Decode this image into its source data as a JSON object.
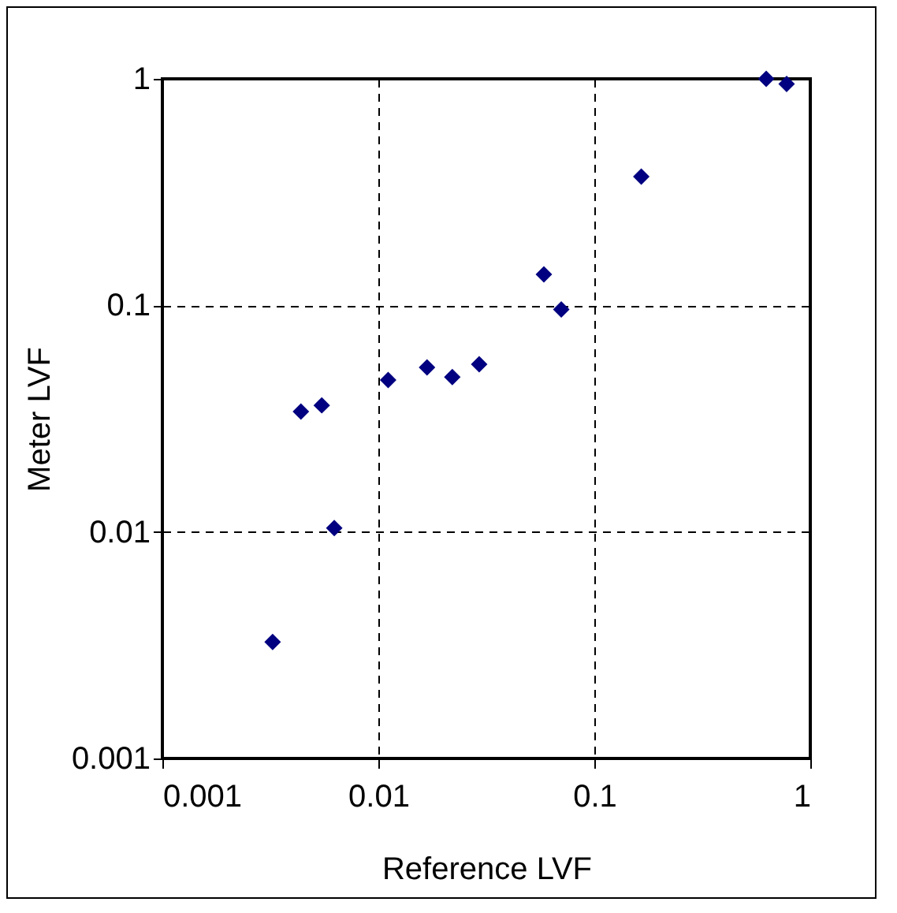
{
  "chart_data": {
    "type": "scatter",
    "xlabel": "Reference LVF",
    "ylabel": "Meter LVF",
    "x": [
      0.00324,
      0.00438,
      0.00547,
      0.00625,
      0.0111,
      0.0168,
      0.022,
      0.0293,
      0.0584,
      0.0703,
      0.165,
      0.625,
      0.777
    ],
    "series": [
      {
        "color": "#000080",
        "values": [
          0.00327,
          0.034,
          0.0362,
          0.0104,
          0.0468,
          0.0532,
          0.0483,
          0.055,
          0.137,
          0.096,
          0.37,
          1.0,
          0.95
        ]
      }
    ],
    "log": "xy",
    "xlim": [
      0.001,
      1
    ],
    "ylim": [
      0.001,
      1
    ],
    "xticks": [
      0.001,
      0.01,
      0.1,
      1
    ],
    "yticks": [
      0.001,
      0.01,
      0.1,
      1
    ],
    "grid": true,
    "marker": "diamond"
  }
}
